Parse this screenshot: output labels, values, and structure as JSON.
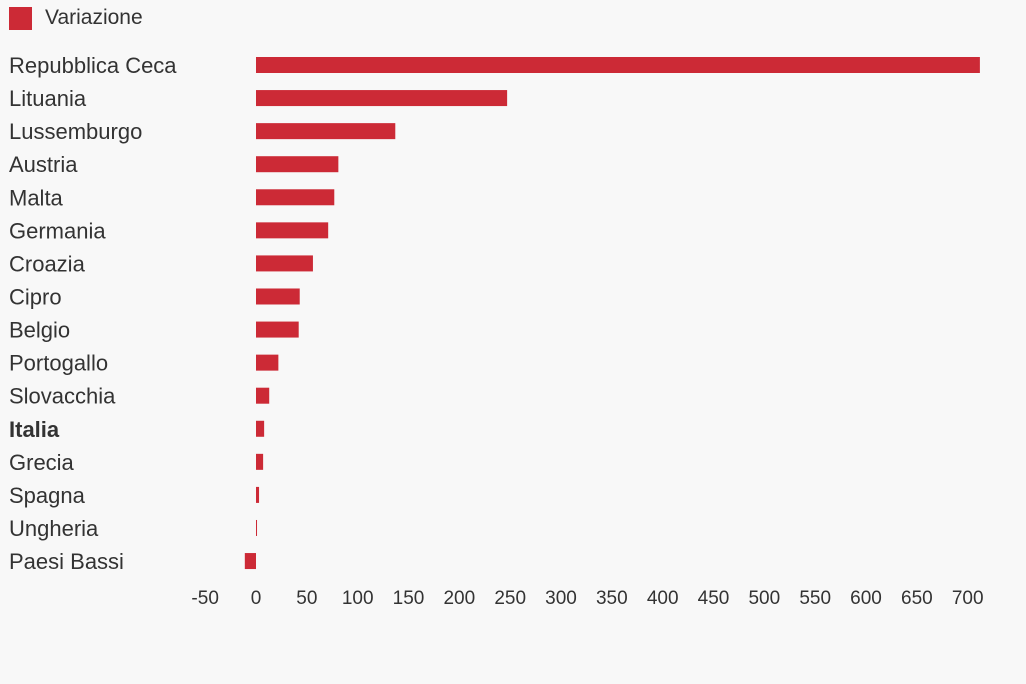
{
  "chart_data": {
    "type": "bar",
    "orientation": "horizontal",
    "categories": [
      "Repubblica Ceca",
      "Lituania",
      "Lussemburgo",
      "Austria",
      "Malta",
      "Germania",
      "Croazia",
      "Cipro",
      "Belgio",
      "Portogallo",
      "Slovacchia",
      "Italia",
      "Grecia",
      "Spagna",
      "Ungheria",
      "Paesi Bassi"
    ],
    "highlighted_category": "Italia",
    "series": [
      {
        "name": "Variazione",
        "color": "#cc2a36",
        "values": [
          712,
          247,
          137,
          81,
          77,
          71,
          56,
          43,
          42,
          22,
          13,
          8,
          7,
          3,
          1,
          -11
        ]
      }
    ],
    "xlim": [
      -50,
      700
    ],
    "xticks": [
      -50,
      0,
      50,
      100,
      150,
      200,
      250,
      300,
      350,
      400,
      450,
      500,
      550,
      600,
      650,
      700
    ],
    "legend_position": "top-left",
    "grid": false,
    "colors": {
      "background": "#f8f8f8",
      "bar": "#cc2a36",
      "text": "#333333"
    }
  }
}
